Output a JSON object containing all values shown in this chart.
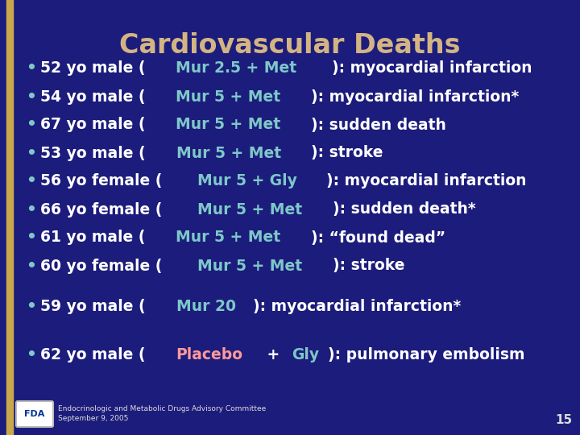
{
  "title": "Cardiovascular Deaths",
  "title_color": "#D4B483",
  "background_color": "#1C1C7C",
  "border_color": "#C8A84B",
  "highlight_color": "#7EC8C8",
  "text_color": "#FFFFFF",
  "bullet_items": [
    [
      "52 yo male (",
      "Mur 2.5 + Met",
      "): myocardial infarction"
    ],
    [
      "54 yo male (",
      "Mur 5 + Met",
      "): myocardial infarction*"
    ],
    [
      "67 yo male (",
      "Mur 5 + Met",
      "): sudden death"
    ],
    [
      "53 yo male (",
      "Mur 5 + Met",
      "): stroke"
    ],
    [
      "56 yo female (",
      "Mur 5 + Gly",
      "): myocardial infarction"
    ],
    [
      "66 yo female (",
      "Mur 5 + Met",
      "): sudden death*"
    ],
    [
      "61 yo male (",
      "Mur 5 + Met",
      "): “found dead”"
    ],
    [
      "60 yo female (",
      "Mur 5 + Met",
      "): stroke"
    ]
  ],
  "item2": [
    "59 yo male (",
    "Mur 20",
    "): myocardial infarction*"
  ],
  "item3": {
    "parts": [
      [
        "62 yo male (",
        "#FFFFFF"
      ],
      [
        "Placebo",
        "#FF9999"
      ],
      [
        " + ",
        "#FFFFFF"
      ],
      [
        "Gly",
        "#7EC8C8"
      ],
      [
        "): pulmonary embolism",
        "#FFFFFF"
      ]
    ]
  },
  "footer_text1": "Endocrinologic and Metabolic Drugs Advisory Committee",
  "footer_text2": "September 9, 2005",
  "page_number": "15",
  "font_size": 13.5,
  "title_font_size": 24
}
